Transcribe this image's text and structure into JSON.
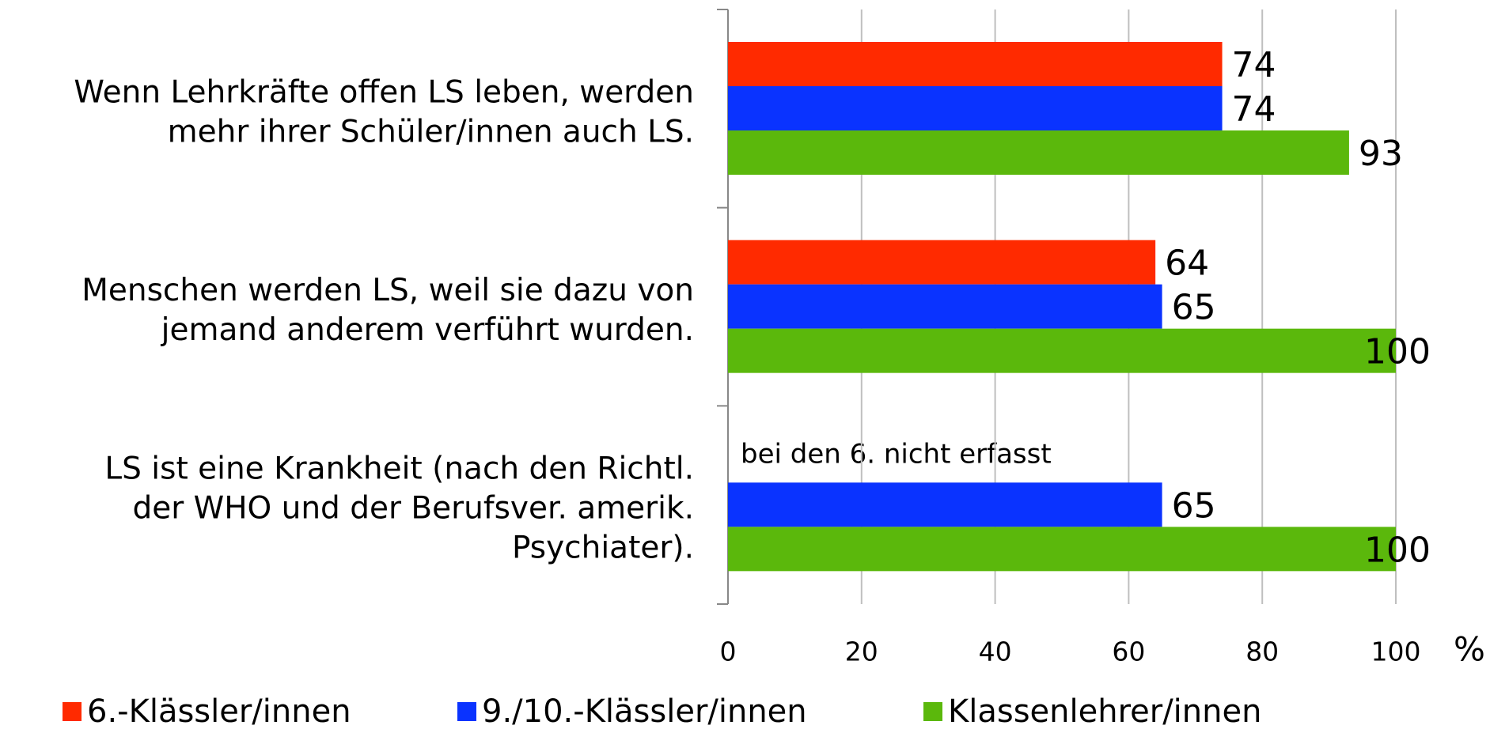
{
  "chart_data": {
    "type": "hbar",
    "categories": [
      [
        "Wenn Lehrkräfte offen LS leben, werden",
        "mehr ihrer Schüler/innen auch LS."
      ],
      [
        "Menschen werden LS, weil sie dazu von",
        "jemand anderem verführt wurden."
      ],
      [
        "LS ist eine Krankheit (nach den Richtl.",
        "der WHO und der Berufsver. amerik.",
        "Psychiater)."
      ]
    ],
    "series": [
      {
        "name": "6.-Klässler/innen",
        "color": "#ff2a00",
        "values": [
          74,
          64,
          null
        ]
      },
      {
        "name": "9./10.-Klässler/innen",
        "color": "#0a33ff",
        "values": [
          74,
          65,
          65
        ]
      },
      {
        "name": "Klassenlehrer/innen",
        "color": "#5bb80c",
        "values": [
          93,
          100,
          100
        ]
      }
    ],
    "annotation": "bei den 6. nicht erfasst",
    "x_label": "%",
    "xlim": [
      0,
      100
    ],
    "xticks": [
      0,
      20,
      40,
      60,
      80,
      100
    ],
    "grid": true
  }
}
